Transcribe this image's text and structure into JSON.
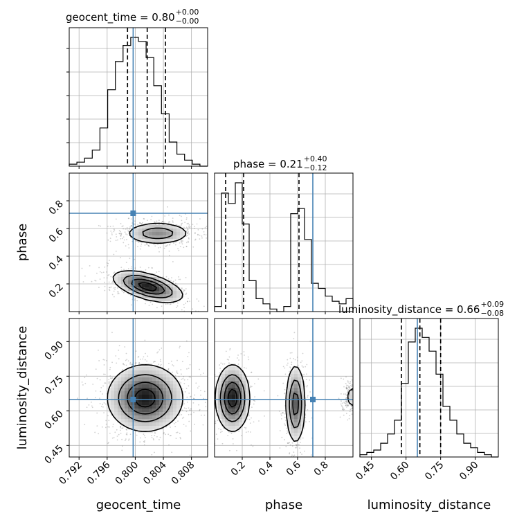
{
  "chart_data": {
    "type": "corner",
    "parameters": [
      "geocent_time",
      "phase",
      "luminosity_distance"
    ],
    "truth": {
      "geocent_time": 0.7997,
      "phase": 0.71,
      "luminosity_distance": 0.649
    },
    "truth_color": "#4682b4",
    "titles": [
      {
        "param": "geocent_time",
        "text": "geocent_time = 0.80",
        "upper": "+0.00",
        "lower": "−0.00"
      },
      {
        "param": "phase",
        "text": "phase = 0.21",
        "upper": "+0.40",
        "lower": "−0.12"
      },
      {
        "param": "luminosity_distance",
        "text": "luminosity_distance = 0.66",
        "upper": "+0.09",
        "lower": "−0.08"
      }
    ],
    "axis_labels": {
      "geocent_time": "geocent_time",
      "phase": "phase",
      "luminosity_distance": "luminosity_distance"
    },
    "ticks": {
      "geocent_time": {
        "range": [
          0.7906,
          0.8103
        ],
        "values": [
          0.792,
          0.796,
          0.8,
          0.804,
          0.808
        ],
        "labels": [
          "0.792",
          "0.796",
          "0.800",
          "0.804",
          "0.808"
        ]
      },
      "phase": {
        "range": [
          0.0,
          1.0
        ],
        "values": [
          0.2,
          0.4,
          0.6,
          0.8
        ],
        "labels": [
          "0.2",
          "0.4",
          "0.6",
          "0.8"
        ]
      },
      "luminosity_distance": {
        "range": [
          0.4,
          1.0
        ],
        "values": [
          0.45,
          0.6,
          0.75,
          0.9
        ],
        "labels": [
          "0.45",
          "0.60",
          "0.75",
          "0.90"
        ]
      }
    },
    "histograms": {
      "geocent_time": {
        "quantiles": [
          0.7989,
          0.8017,
          0.8043
        ],
        "values": [
          1,
          2,
          4,
          8,
          19,
          38,
          52,
          60,
          64,
          62,
          54,
          40,
          26,
          12,
          6,
          3,
          1,
          0
        ]
      },
      "phase": {
        "quantiles": [
          0.08,
          0.21,
          0.61
        ],
        "values": [
          2,
          46,
          42,
          50,
          34,
          12,
          5,
          3,
          1,
          0,
          2,
          38,
          40,
          28,
          11,
          9,
          6,
          4,
          3,
          5
        ]
      },
      "luminosity_distance": {
        "quantiles": [
          0.58,
          0.66,
          0.75
        ],
        "values": [
          1,
          2,
          3,
          6,
          10,
          16,
          32,
          50,
          56,
          52,
          46,
          36,
          22,
          16,
          10,
          6,
          4,
          2,
          1,
          0
        ]
      }
    },
    "grid": true
  }
}
